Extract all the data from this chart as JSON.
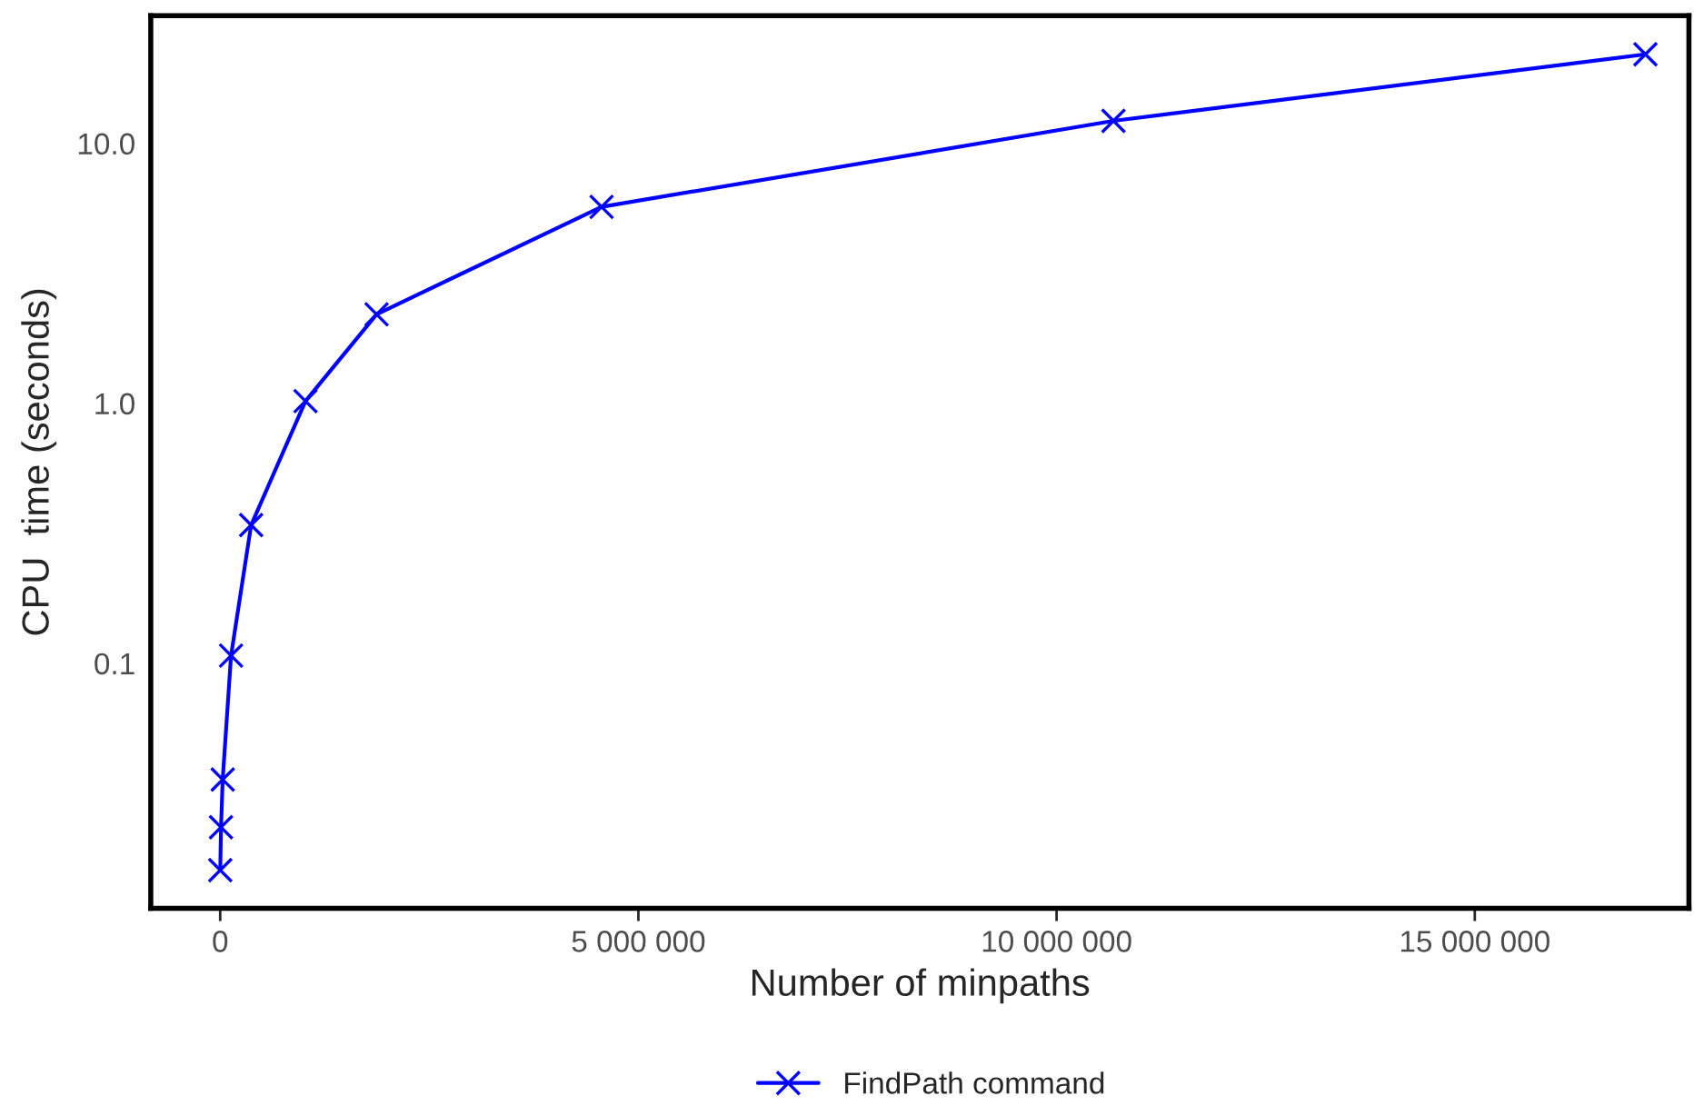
{
  "chart_data": {
    "type": "line",
    "xlabel": "Number of minpaths",
    "ylabel": "CPU  time (seconds)",
    "series": [
      {
        "name": "FindPath command",
        "color": "#0000ff",
        "x": [
          1000,
          10000,
          30000,
          130000,
          370000,
          1020000,
          1870000,
          4560000,
          10680000,
          17040000
        ],
        "values": [
          0.016,
          0.0234,
          0.0357,
          0.107,
          0.34,
          1.02,
          2.2,
          5.7,
          12.2,
          22.0
        ]
      }
    ],
    "log": "y",
    "xlim": [
      -830000,
      17560000
    ],
    "ylim": [
      0.0114,
      31
    ],
    "xticks": [
      0,
      {
        "value": 5000000,
        "label": "5 000 000"
      },
      {
        "value": 10000000,
        "label": "10 000 000"
      },
      {
        "value": 15000000,
        "label": "15 000 000"
      }
    ],
    "yticks": [
      {
        "value": 0.1,
        "label": "0.1"
      },
      {
        "value": 1,
        "label": "1.0"
      },
      {
        "value": 10,
        "label": "10.0"
      }
    ],
    "marker": "cross",
    "line_style": "solid",
    "grid": false,
    "legend": "bottom"
  }
}
